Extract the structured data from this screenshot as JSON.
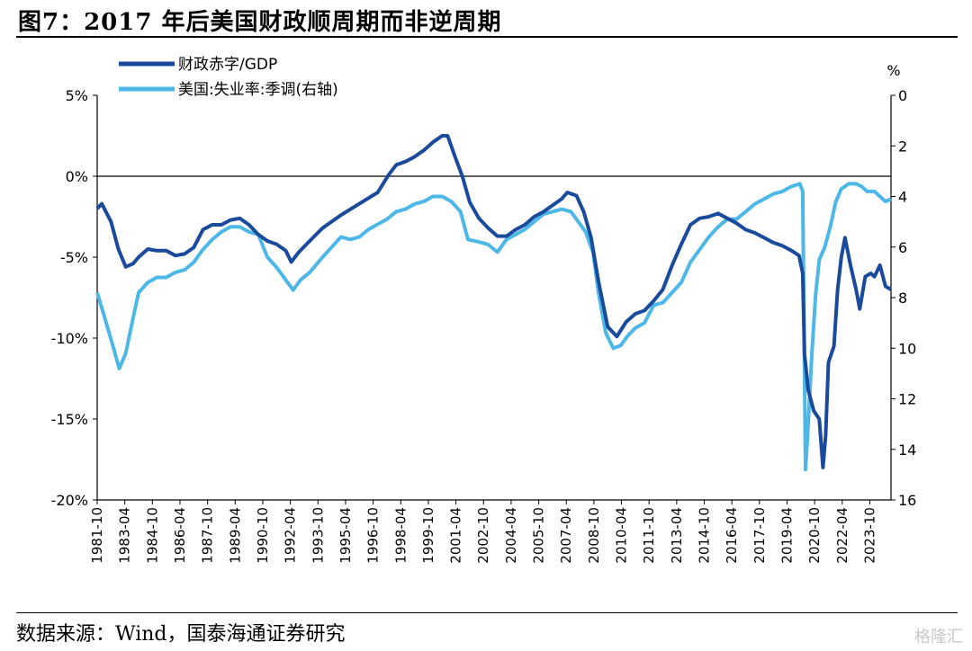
{
  "title": "图7：2017 年后美国财政顺周期而非逆周期",
  "source": "数据来源：Wind，国泰海通证券研究",
  "watermark": "格隆汇",
  "colors": {
    "deficit": "#1a4a9c",
    "unemployment": "#4db8e8"
  },
  "chart_data": {
    "type": "line",
    "title": "图7：2017 年后美国财政顺周期而非逆周期",
    "y_left": {
      "label": "",
      "ticks": [
        "5%",
        "0%",
        "-5%",
        "-10%",
        "-15%",
        "-20%"
      ],
      "lim": [
        -20,
        5
      ]
    },
    "y_right": {
      "label": "%",
      "ticks": [
        "0",
        "2",
        "4",
        "6",
        "8",
        "10",
        "12",
        "14",
        "16"
      ],
      "lim": [
        16,
        0
      ],
      "inverted": true
    },
    "x_ticks": [
      "1981-10",
      "1983-04",
      "1984-10",
      "1986-04",
      "1987-10",
      "1989-04",
      "1990-10",
      "1992-04",
      "1993-10",
      "1995-04",
      "1996-10",
      "1998-04",
      "1999-10",
      "2001-04",
      "2002-10",
      "2004-04",
      "2005-10",
      "2007-04",
      "2008-10",
      "2010-04",
      "2011-10",
      "2013-04",
      "2014-10",
      "2016-04",
      "2017-10",
      "2019-04",
      "2020-10",
      "2022-04",
      "2023-10"
    ],
    "legend_position": "top-left",
    "grid": false,
    "series": [
      {
        "name": "财政赤字/GDP",
        "axis": "left",
        "points": [
          [
            1981.75,
            -2.0
          ],
          [
            1982.0,
            -1.7
          ],
          [
            1982.5,
            -2.8
          ],
          [
            1982.9,
            -4.5
          ],
          [
            1983.3,
            -5.6
          ],
          [
            1983.7,
            -5.4
          ],
          [
            1984.0,
            -5.0
          ],
          [
            1984.5,
            -4.5
          ],
          [
            1985.0,
            -4.6
          ],
          [
            1985.5,
            -4.6
          ],
          [
            1986.0,
            -4.9
          ],
          [
            1986.5,
            -4.8
          ],
          [
            1987.0,
            -4.4
          ],
          [
            1987.5,
            -3.3
          ],
          [
            1988.0,
            -3.0
          ],
          [
            1988.5,
            -3.0
          ],
          [
            1989.0,
            -2.7
          ],
          [
            1989.5,
            -2.6
          ],
          [
            1990.0,
            -3.0
          ],
          [
            1990.5,
            -3.6
          ],
          [
            1991.0,
            -4.0
          ],
          [
            1991.5,
            -4.2
          ],
          [
            1992.0,
            -4.6
          ],
          [
            1992.3,
            -5.3
          ],
          [
            1992.7,
            -4.7
          ],
          [
            1993.3,
            -4.0
          ],
          [
            1994.0,
            -3.2
          ],
          [
            1995.0,
            -2.4
          ],
          [
            1996.0,
            -1.7
          ],
          [
            1997.0,
            -1.0
          ],
          [
            1997.6,
            0.1
          ],
          [
            1998.0,
            0.7
          ],
          [
            1998.5,
            0.9
          ],
          [
            1999.0,
            1.2
          ],
          [
            1999.5,
            1.6
          ],
          [
            2000.0,
            2.1
          ],
          [
            2000.5,
            2.5
          ],
          [
            2000.8,
            2.5
          ],
          [
            2001.2,
            1.2
          ],
          [
            2001.6,
            0.0
          ],
          [
            2002.0,
            -1.6
          ],
          [
            2002.5,
            -2.6
          ],
          [
            2003.0,
            -3.2
          ],
          [
            2003.5,
            -3.7
          ],
          [
            2004.0,
            -3.7
          ],
          [
            2004.5,
            -3.3
          ],
          [
            2005.0,
            -3.0
          ],
          [
            2005.5,
            -2.5
          ],
          [
            2006.0,
            -2.2
          ],
          [
            2006.5,
            -1.8
          ],
          [
            2007.0,
            -1.4
          ],
          [
            2007.3,
            -1.0
          ],
          [
            2007.8,
            -1.2
          ],
          [
            2008.2,
            -2.2
          ],
          [
            2008.6,
            -3.8
          ],
          [
            2009.0,
            -6.5
          ],
          [
            2009.5,
            -9.3
          ],
          [
            2010.0,
            -9.9
          ],
          [
            2010.5,
            -9.0
          ],
          [
            2011.0,
            -8.5
          ],
          [
            2011.5,
            -8.3
          ],
          [
            2012.0,
            -7.7
          ],
          [
            2012.5,
            -7.0
          ],
          [
            2013.0,
            -5.5
          ],
          [
            2013.5,
            -4.2
          ],
          [
            2014.0,
            -3.0
          ],
          [
            2014.5,
            -2.6
          ],
          [
            2015.0,
            -2.5
          ],
          [
            2015.5,
            -2.3
          ],
          [
            2016.0,
            -2.6
          ],
          [
            2016.5,
            -2.9
          ],
          [
            2017.0,
            -3.3
          ],
          [
            2017.5,
            -3.5
          ],
          [
            2018.0,
            -3.8
          ],
          [
            2018.5,
            -4.1
          ],
          [
            2019.0,
            -4.3
          ],
          [
            2019.5,
            -4.6
          ],
          [
            2019.9,
            -4.9
          ],
          [
            2020.1,
            -6.0
          ],
          [
            2020.2,
            -11.0
          ],
          [
            2020.4,
            -13.2
          ],
          [
            2020.7,
            -14.5
          ],
          [
            2021.0,
            -15.0
          ],
          [
            2021.2,
            -18.0
          ],
          [
            2021.35,
            -16.0
          ],
          [
            2021.5,
            -11.5
          ],
          [
            2021.8,
            -10.5
          ],
          [
            2022.0,
            -7.0
          ],
          [
            2022.2,
            -5.0
          ],
          [
            2022.4,
            -3.8
          ],
          [
            2022.7,
            -5.5
          ],
          [
            2023.0,
            -7.0
          ],
          [
            2023.2,
            -8.2
          ],
          [
            2023.5,
            -6.2
          ],
          [
            2023.8,
            -6.0
          ],
          [
            2024.0,
            -6.2
          ],
          [
            2024.3,
            -5.5
          ],
          [
            2024.6,
            -6.8
          ],
          [
            2024.9,
            -7.0
          ]
        ]
      },
      {
        "name": "美国:失业率:季调(右轴)",
        "axis": "right",
        "points": [
          [
            1981.75,
            7.8
          ],
          [
            1982.2,
            8.9
          ],
          [
            1982.6,
            9.9
          ],
          [
            1982.95,
            10.8
          ],
          [
            1983.3,
            10.2
          ],
          [
            1983.7,
            8.8
          ],
          [
            1984.0,
            7.8
          ],
          [
            1984.5,
            7.4
          ],
          [
            1985.0,
            7.2
          ],
          [
            1985.5,
            7.2
          ],
          [
            1986.0,
            7.0
          ],
          [
            1986.5,
            6.9
          ],
          [
            1987.0,
            6.6
          ],
          [
            1987.5,
            6.1
          ],
          [
            1988.0,
            5.7
          ],
          [
            1988.5,
            5.4
          ],
          [
            1989.0,
            5.2
          ],
          [
            1989.5,
            5.2
          ],
          [
            1990.0,
            5.4
          ],
          [
            1990.5,
            5.5
          ],
          [
            1991.0,
            6.4
          ],
          [
            1991.5,
            6.8
          ],
          [
            1992.0,
            7.3
          ],
          [
            1992.4,
            7.7
          ],
          [
            1992.8,
            7.3
          ],
          [
            1993.3,
            7.0
          ],
          [
            1994.0,
            6.4
          ],
          [
            1994.5,
            6.0
          ],
          [
            1995.0,
            5.6
          ],
          [
            1995.5,
            5.7
          ],
          [
            1996.0,
            5.6
          ],
          [
            1996.5,
            5.3
          ],
          [
            1997.0,
            5.1
          ],
          [
            1997.5,
            4.9
          ],
          [
            1998.0,
            4.6
          ],
          [
            1998.5,
            4.5
          ],
          [
            1999.0,
            4.3
          ],
          [
            1999.5,
            4.2
          ],
          [
            2000.0,
            4.0
          ],
          [
            2000.5,
            4.0
          ],
          [
            2001.0,
            4.2
          ],
          [
            2001.5,
            4.6
          ],
          [
            2001.9,
            5.7
          ],
          [
            2002.5,
            5.8
          ],
          [
            2003.0,
            5.9
          ],
          [
            2003.5,
            6.2
          ],
          [
            2004.0,
            5.7
          ],
          [
            2004.5,
            5.5
          ],
          [
            2005.0,
            5.3
          ],
          [
            2005.5,
            5.0
          ],
          [
            2006.0,
            4.7
          ],
          [
            2006.5,
            4.6
          ],
          [
            2007.0,
            4.5
          ],
          [
            2007.5,
            4.6
          ],
          [
            2007.9,
            5.0
          ],
          [
            2008.3,
            5.4
          ],
          [
            2008.7,
            6.2
          ],
          [
            2009.0,
            7.8
          ],
          [
            2009.4,
            9.4
          ],
          [
            2009.8,
            10.0
          ],
          [
            2010.2,
            9.9
          ],
          [
            2010.6,
            9.5
          ],
          [
            2011.0,
            9.2
          ],
          [
            2011.5,
            9.0
          ],
          [
            2012.0,
            8.3
          ],
          [
            2012.5,
            8.2
          ],
          [
            2013.0,
            7.8
          ],
          [
            2013.5,
            7.4
          ],
          [
            2014.0,
            6.6
          ],
          [
            2014.5,
            6.1
          ],
          [
            2015.0,
            5.6
          ],
          [
            2015.5,
            5.2
          ],
          [
            2016.0,
            4.9
          ],
          [
            2016.5,
            4.9
          ],
          [
            2017.0,
            4.6
          ],
          [
            2017.5,
            4.3
          ],
          [
            2018.0,
            4.1
          ],
          [
            2018.5,
            3.9
          ],
          [
            2019.0,
            3.8
          ],
          [
            2019.5,
            3.6
          ],
          [
            2019.95,
            3.5
          ],
          [
            2020.1,
            3.8
          ],
          [
            2020.25,
            14.8
          ],
          [
            2020.4,
            13.0
          ],
          [
            2020.6,
            10.2
          ],
          [
            2020.8,
            7.9
          ],
          [
            2021.0,
            6.5
          ],
          [
            2021.3,
            6.0
          ],
          [
            2021.6,
            5.2
          ],
          [
            2021.9,
            4.2
          ],
          [
            2022.2,
            3.7
          ],
          [
            2022.6,
            3.5
          ],
          [
            2023.0,
            3.5
          ],
          [
            2023.3,
            3.6
          ],
          [
            2023.6,
            3.8
          ],
          [
            2024.0,
            3.8
          ],
          [
            2024.3,
            4.0
          ],
          [
            2024.6,
            4.2
          ],
          [
            2024.9,
            4.1
          ]
        ]
      }
    ]
  }
}
